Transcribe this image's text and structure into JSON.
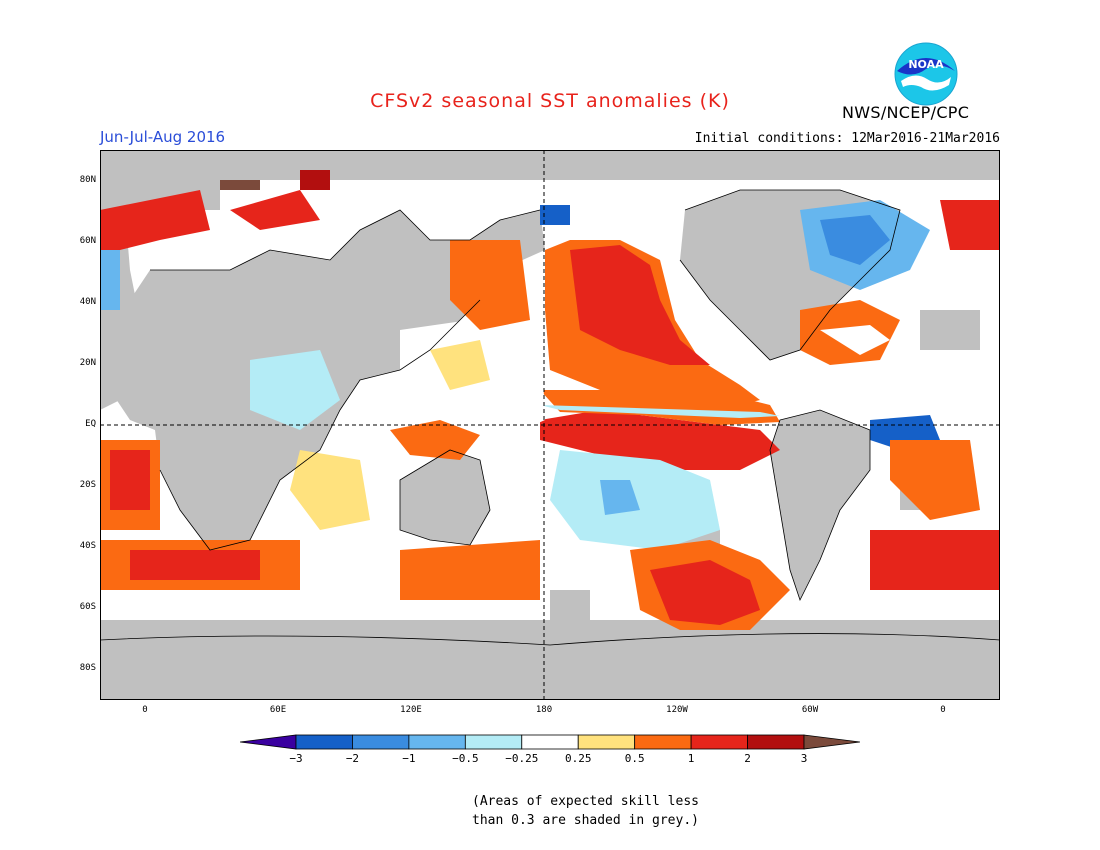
{
  "title": "CFSv2 seasonal SST anomalies (K)",
  "season": "Jun-Jul-Aug 2016",
  "initial_conditions": "Initial conditions: 12Mar2016-21Mar2016",
  "agency": "NWS/NCEP/CPC",
  "logo": {
    "text": "NOAA",
    "icon": "noaa-logo"
  },
  "map": {
    "lat_labels": [
      "80N",
      "60N",
      "40N",
      "20N",
      "EQ",
      "20S",
      "40S",
      "60S",
      "80S"
    ],
    "lon_labels": [
      "0",
      "60E",
      "120E",
      "180",
      "120W",
      "60W",
      "0"
    ],
    "land_color": "#c0c0c0",
    "grid": "dashed lines at EQ and 180"
  },
  "colorbar": {
    "labels": [
      "−3",
      "−2",
      "−1",
      "−0.5",
      "−0.25",
      "0.25",
      "0.5",
      "1",
      "2",
      "3"
    ],
    "colors": [
      "#3a00a0",
      "#1560c8",
      "#3a8ce0",
      "#66b6ee",
      "#b4ecf6",
      "#ffffff",
      "#ffe27e",
      "#fb6a12",
      "#e6251b",
      "#b20f0f",
      "#7b4a3b"
    ]
  },
  "footnote": {
    "line1": "(Areas of expected skill less",
    "line2": "than 0.3 are shaded in grey.)"
  }
}
